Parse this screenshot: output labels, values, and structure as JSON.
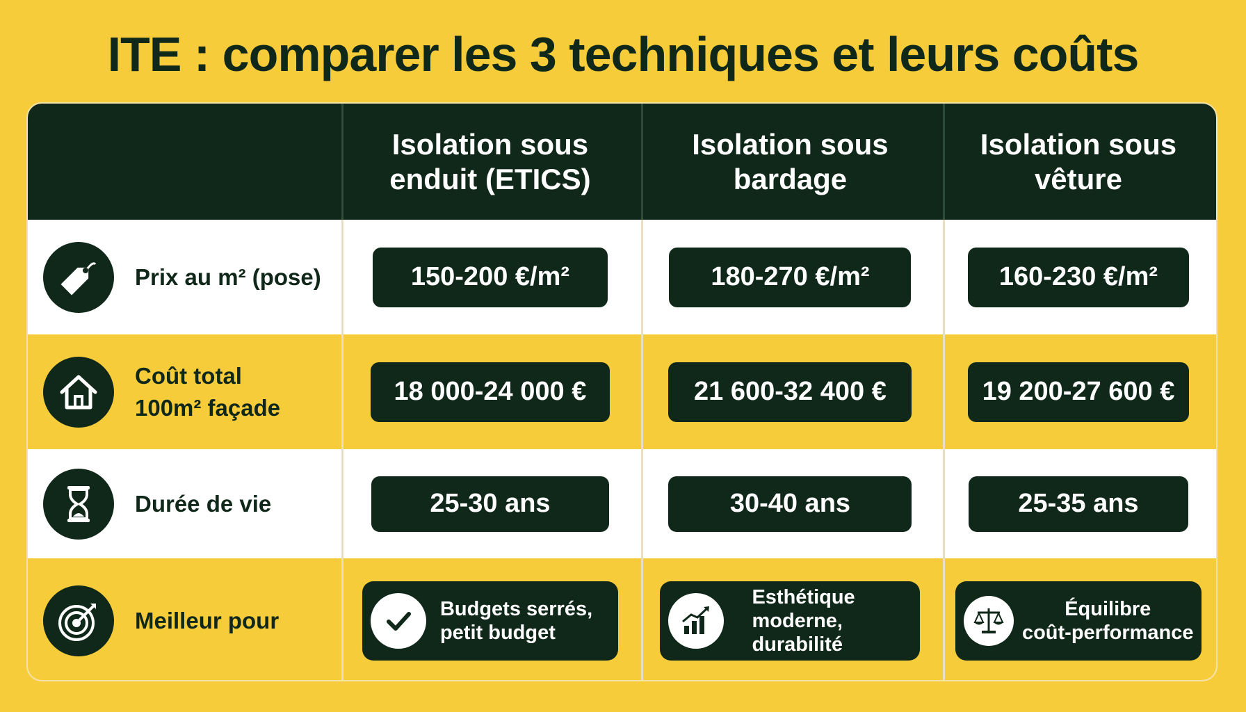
{
  "title": "ITE : comparer les 3 techniques et leurs coûts",
  "columns": [
    "Isolation sous\nenduit (ETICS)",
    "Isolation sous\nbardage",
    "Isolation sous\nvêture"
  ],
  "rows": [
    {
      "label": "Prix au m² (pose)",
      "icon": "price-tag-icon",
      "values": [
        "150-200 €/m²",
        "180-270 €/m²",
        "160-230 €/m²"
      ]
    },
    {
      "label": "Coût total\n100m² façade",
      "icon": "house-icon",
      "values": [
        "18 000-24 000 €",
        "21 600-32 400 €",
        "19 200-27 600 €"
      ]
    },
    {
      "label": "Durée de vie",
      "icon": "hourglass-icon",
      "values": [
        "25-30 ans",
        "30-40 ans",
        "25-35 ans"
      ]
    },
    {
      "label": "Meilleur pour",
      "icon": "target-icon",
      "values": [
        "Budgets serrés,\npetit budget",
        "Esthétique\nmoderne,\ndurabilité",
        "Équilibre\ncoût-performance"
      ],
      "value_icons": [
        "checkmark-icon",
        "growth-chart-icon",
        "balance-scale-icon"
      ]
    }
  ],
  "colors": {
    "background": "#f7cc3a",
    "dark": "#10281a",
    "white": "#ffffff"
  }
}
